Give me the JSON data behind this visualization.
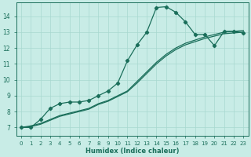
{
  "xlabel": "Humidex (Indice chaleur)",
  "background_color": "#c8ece6",
  "grid_color": "#a8d8d0",
  "line_color": "#1a6e5a",
  "xlim": [
    -0.5,
    23.5
  ],
  "ylim": [
    6.5,
    14.85
  ],
  "xticks": [
    0,
    1,
    2,
    3,
    4,
    5,
    6,
    7,
    8,
    9,
    10,
    11,
    12,
    13,
    14,
    15,
    16,
    17,
    18,
    19,
    20,
    21,
    22,
    23
  ],
  "yticks": [
    7,
    8,
    9,
    10,
    11,
    12,
    13,
    14
  ],
  "y_peak": [
    7.0,
    7.0,
    7.5,
    8.2,
    8.5,
    8.6,
    8.6,
    8.7,
    9.0,
    9.3,
    9.8,
    11.2,
    12.2,
    13.0,
    14.55,
    14.6,
    14.25,
    13.65,
    12.85,
    12.85,
    12.15,
    13.05,
    13.05,
    12.95
  ],
  "y_linear1": [
    7.0,
    7.1,
    7.25,
    7.5,
    7.75,
    7.9,
    8.05,
    8.2,
    8.5,
    8.7,
    9.0,
    9.3,
    9.9,
    10.5,
    11.1,
    11.6,
    12.0,
    12.3,
    12.5,
    12.7,
    12.85,
    13.0,
    13.05,
    13.1
  ],
  "y_linear2": [
    7.0,
    7.05,
    7.2,
    7.45,
    7.7,
    7.85,
    8.0,
    8.15,
    8.45,
    8.65,
    8.95,
    9.25,
    9.8,
    10.4,
    11.0,
    11.5,
    11.9,
    12.2,
    12.4,
    12.6,
    12.75,
    12.9,
    12.95,
    13.0
  ]
}
